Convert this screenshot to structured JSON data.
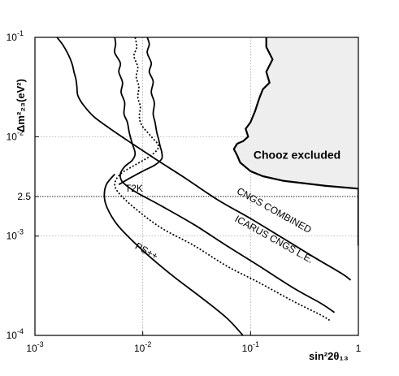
{
  "chart_data": {
    "type": "line",
    "xscale": "log",
    "yscale": "log",
    "xlim": [
      0.001,
      1
    ],
    "ylim": [
      0.0001,
      0.1
    ],
    "xlabel": "sin²2θ₁₃",
    "ylabel": "Δm²₂₃(eV²)",
    "xticks": [
      {
        "value": 0.001,
        "base": "10",
        "exp": "-3"
      },
      {
        "value": 0.01,
        "base": "10",
        "exp": "-2"
      },
      {
        "value": 0.1,
        "base": "10",
        "exp": "-1"
      },
      {
        "value": 1,
        "base": "1",
        "exp": ""
      }
    ],
    "yticks": [
      {
        "value": 0.0001,
        "base": "10",
        "exp": "-4"
      },
      {
        "value": 0.001,
        "base": "10",
        "exp": "-3"
      },
      {
        "value": 0.0025,
        "base": "2.5",
        "exp": ""
      },
      {
        "value": 0.01,
        "base": "10",
        "exp": "-2"
      },
      {
        "value": 0.1,
        "base": "10",
        "exp": "-1"
      }
    ],
    "grid": {
      "x": [
        0.01,
        0.1
      ],
      "y": [
        0.001,
        0.01
      ]
    },
    "reference_line": {
      "y": 0.0025,
      "style": "dotted"
    },
    "shaded_region": {
      "label": "Chooz excluded",
      "label_at": [
        0.27,
        0.006
      ],
      "boundary": [
        [
          0.14,
          0.1
        ],
        [
          0.14,
          0.08
        ],
        [
          0.16,
          0.06
        ],
        [
          0.14,
          0.045
        ],
        [
          0.15,
          0.035
        ],
        [
          0.13,
          0.03
        ],
        [
          0.12,
          0.024
        ],
        [
          0.11,
          0.018
        ],
        [
          0.1,
          0.014
        ],
        [
          0.09,
          0.012
        ],
        [
          0.095,
          0.01
        ],
        [
          0.085,
          0.009
        ],
        [
          0.075,
          0.0085
        ],
        [
          0.07,
          0.0075
        ],
        [
          0.075,
          0.0065
        ],
        [
          0.08,
          0.0055
        ],
        [
          0.1,
          0.0045
        ],
        [
          0.13,
          0.004
        ],
        [
          0.2,
          0.0036
        ],
        [
          0.5,
          0.0032
        ],
        [
          1,
          0.003
        ],
        [
          1,
          0.001
        ],
        [
          1,
          0.0008
        ]
      ],
      "color": "#eeeeee"
    },
    "series": [
      {
        "name": "CNGS COMBINED",
        "style": "solid",
        "label_at": [
          0.16,
          0.0017
        ],
        "label_rotate": 29,
        "points": [
          [
            0.0016,
            0.1
          ],
          [
            0.0018,
            0.085
          ],
          [
            0.002,
            0.07
          ],
          [
            0.0022,
            0.055
          ],
          [
            0.0023,
            0.045
          ],
          [
            0.0024,
            0.038
          ],
          [
            0.00245,
            0.032
          ],
          [
            0.0025,
            0.026
          ],
          [
            0.0028,
            0.021
          ],
          [
            0.0035,
            0.016
          ],
          [
            0.005,
            0.012
          ],
          [
            0.008,
            0.0085
          ],
          [
            0.013,
            0.006
          ],
          [
            0.025,
            0.0038
          ],
          [
            0.05,
            0.0023
          ],
          [
            0.1,
            0.0015
          ],
          [
            0.2,
            0.00095
          ],
          [
            0.4,
            0.0006
          ],
          [
            0.7,
            0.00042
          ],
          [
            0.85,
            0.00036
          ]
        ]
      },
      {
        "name": "ICARUS CNGS L.E.",
        "style": "solid",
        "label_at": [
          0.16,
          0.00087
        ],
        "label_rotate": 29,
        "points": [
          [
            0.0055,
            0.1
          ],
          [
            0.0056,
            0.085
          ],
          [
            0.0055,
            0.07
          ],
          [
            0.0062,
            0.055
          ],
          [
            0.006,
            0.045
          ],
          [
            0.0065,
            0.035
          ],
          [
            0.0063,
            0.028
          ],
          [
            0.0068,
            0.022
          ],
          [
            0.0067,
            0.017
          ],
          [
            0.0072,
            0.014
          ],
          [
            0.0075,
            0.011
          ],
          [
            0.008,
            0.0085
          ],
          [
            0.0085,
            0.0068
          ],
          [
            0.008,
            0.0058
          ],
          [
            0.0068,
            0.005
          ],
          [
            0.0062,
            0.0042
          ],
          [
            0.0065,
            0.0035
          ],
          [
            0.0085,
            0.0028
          ],
          [
            0.015,
            0.002
          ],
          [
            0.03,
            0.0013
          ],
          [
            0.06,
            0.0008
          ],
          [
            0.12,
            0.0005
          ],
          [
            0.25,
            0.0003
          ],
          [
            0.45,
            0.00021
          ],
          [
            0.6,
            0.00017
          ]
        ]
      },
      {
        "name": "",
        "style": "dotted",
        "points": [
          [
            0.0085,
            0.1
          ],
          [
            0.0088,
            0.08
          ],
          [
            0.0083,
            0.065
          ],
          [
            0.009,
            0.05
          ],
          [
            0.0087,
            0.04
          ],
          [
            0.0092,
            0.032
          ],
          [
            0.009,
            0.025
          ],
          [
            0.0095,
            0.02
          ],
          [
            0.0093,
            0.016
          ],
          [
            0.0098,
            0.013
          ],
          [
            0.012,
            0.01
          ],
          [
            0.014,
            0.008
          ],
          [
            0.012,
            0.0065
          ],
          [
            0.0085,
            0.0052
          ],
          [
            0.0062,
            0.0042
          ],
          [
            0.0055,
            0.0033
          ],
          [
            0.0062,
            0.0026
          ],
          [
            0.009,
            0.0018
          ],
          [
            0.015,
            0.0012
          ],
          [
            0.03,
            0.0008
          ],
          [
            0.06,
            0.0005
          ],
          [
            0.12,
            0.00034
          ],
          [
            0.25,
            0.00022
          ],
          [
            0.45,
            0.00016
          ],
          [
            0.55,
            0.00014
          ]
        ]
      },
      {
        "name": "",
        "style": "solid",
        "points": [
          [
            0.011,
            0.1
          ],
          [
            0.0115,
            0.085
          ],
          [
            0.011,
            0.07
          ],
          [
            0.012,
            0.055
          ],
          [
            0.0115,
            0.045
          ],
          [
            0.0125,
            0.036
          ],
          [
            0.012,
            0.028
          ],
          [
            0.0128,
            0.022
          ],
          [
            0.0125,
            0.017
          ],
          [
            0.013,
            0.014
          ],
          [
            0.0135,
            0.011
          ],
          [
            0.014,
            0.0095
          ],
          [
            0.0145,
            0.008
          ],
          [
            0.015,
            0.007
          ],
          [
            0.015,
            0.006
          ],
          [
            0.013,
            0.0052
          ],
          [
            0.01,
            0.0045
          ],
          [
            0.0075,
            0.0038
          ],
          [
            0.006,
            0.0033
          ]
        ]
      },
      {
        "name": "PS++",
        "style": "solid",
        "label_at": [
          0.0105,
          0.00066
        ],
        "label_rotate": 29,
        "points": [
          [
            0.0055,
            0.0042
          ],
          [
            0.0046,
            0.0033
          ],
          [
            0.0044,
            0.0025
          ],
          [
            0.0047,
            0.0019
          ],
          [
            0.0058,
            0.0013
          ],
          [
            0.008,
            0.0009
          ],
          [
            0.012,
            0.0006
          ],
          [
            0.02,
            0.00038
          ],
          [
            0.035,
            0.00024
          ],
          [
            0.06,
            0.00015
          ],
          [
            0.085,
            0.0001
          ]
        ]
      }
    ],
    "annotations": [
      {
        "text": "T2K",
        "at": [
          0.0083,
          0.0028
        ]
      }
    ]
  }
}
